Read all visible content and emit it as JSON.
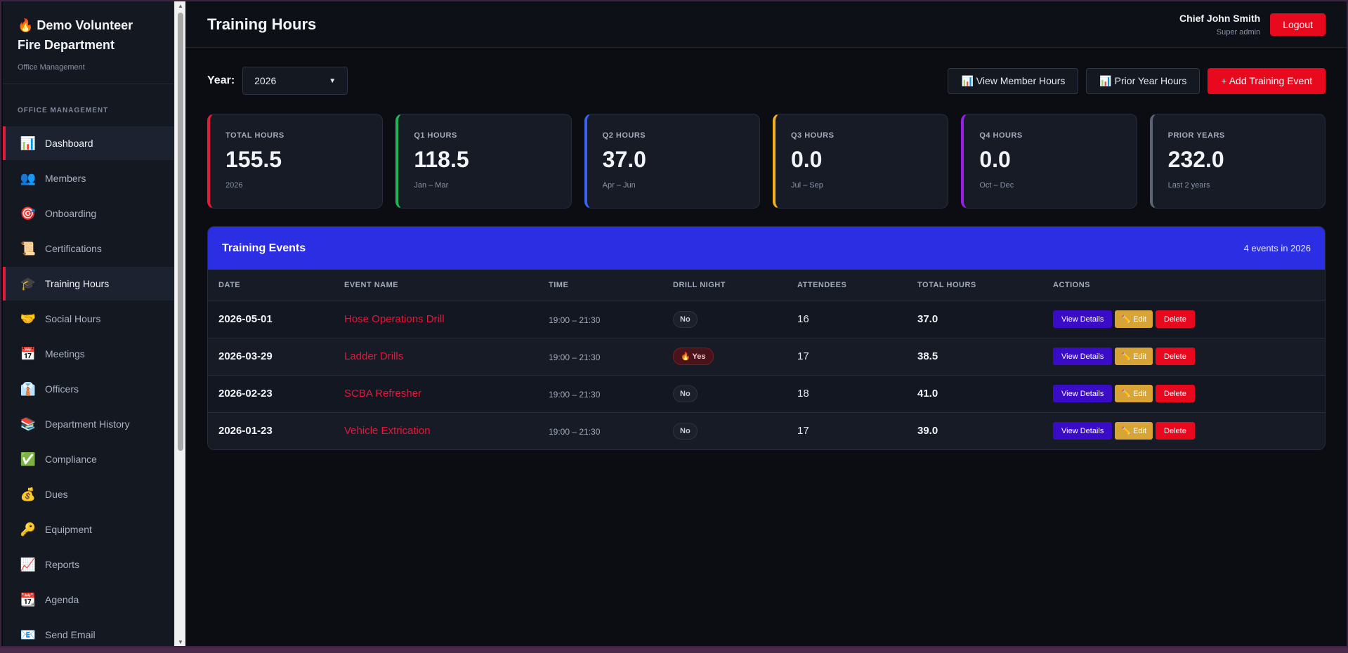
{
  "brand": {
    "title": "🔥 Demo Volunteer Fire Department",
    "subtitle": "Office Management"
  },
  "sidebar": {
    "heading": "OFFICE MANAGEMENT",
    "items": [
      {
        "label": "Dashboard",
        "icon": "📊",
        "icon_name": "bar-chart-icon",
        "active": true
      },
      {
        "label": "Members",
        "icon": "👥",
        "icon_name": "people-icon"
      },
      {
        "label": "Onboarding",
        "icon": "🎯",
        "icon_name": "target-icon"
      },
      {
        "label": "Certifications",
        "icon": "📜",
        "icon_name": "scroll-icon"
      },
      {
        "label": "Training Hours",
        "icon": "🎓",
        "icon_name": "graduation-cap-icon",
        "active": true
      },
      {
        "label": "Social Hours",
        "icon": "🤝",
        "icon_name": "handshake-icon"
      },
      {
        "label": "Meetings",
        "icon": "📅",
        "icon_name": "calendar-icon"
      },
      {
        "label": "Officers",
        "icon": "👔",
        "icon_name": "necktie-icon"
      },
      {
        "label": "Department History",
        "icon": "📚",
        "icon_name": "books-icon"
      },
      {
        "label": "Compliance",
        "icon": "✅",
        "icon_name": "check-mark-icon"
      },
      {
        "label": "Dues",
        "icon": "💰",
        "icon_name": "money-bag-icon"
      },
      {
        "label": "Equipment",
        "icon": "🔑",
        "icon_name": "key-icon"
      },
      {
        "label": "Reports",
        "icon": "📈",
        "icon_name": "trend-chart-icon"
      },
      {
        "label": "Agenda",
        "icon": "📆",
        "icon_name": "tear-off-calendar-icon"
      },
      {
        "label": "Send Email",
        "icon": "📧",
        "icon_name": "email-icon"
      }
    ]
  },
  "header": {
    "title": "Training Hours",
    "user_name": "Chief John Smith",
    "user_role": "Super admin",
    "logout_label": "Logout"
  },
  "toolbar": {
    "year_label": "Year:",
    "year_value": "2026",
    "view_member_hours_label": "📊 View Member Hours",
    "prior_year_hours_label": "📊 Prior Year Hours",
    "add_event_label": "+ Add Training Event"
  },
  "stats": [
    {
      "label": "TOTAL HOURS",
      "value": "155.5",
      "sub": "2026",
      "color": "#e21d3a"
    },
    {
      "label": "Q1 HOURS",
      "value": "118.5",
      "sub": "Jan – Mar",
      "color": "#1fb35a"
    },
    {
      "label": "Q2 HOURS",
      "value": "37.0",
      "sub": "Apr – Jun",
      "color": "#3b63f0"
    },
    {
      "label": "Q3 HOURS",
      "value": "0.0",
      "sub": "Jul – Sep",
      "color": "#f0b21f"
    },
    {
      "label": "Q4 HOURS",
      "value": "0.0",
      "sub": "Oct – Dec",
      "color": "#9b1ee6"
    },
    {
      "label": "PRIOR YEARS",
      "value": "232.0",
      "sub": "Last 2 years",
      "color": "#5c6474"
    }
  ],
  "events": {
    "title": "Training Events",
    "count": "4 events in 2026",
    "columns": [
      "DATE",
      "EVENT NAME",
      "TIME",
      "DRILL NIGHT",
      "ATTENDEES",
      "TOTAL HOURS",
      "ACTIONS"
    ],
    "rows": [
      {
        "date": "2026-05-01",
        "name": "Hose Operations Drill",
        "time": "19:00 – 21:30",
        "drill": "No",
        "drill_yes": false,
        "attendees": "16",
        "hours": "37.0"
      },
      {
        "date": "2026-03-29",
        "name": "Ladder Drills",
        "time": "19:00 – 21:30",
        "drill": "🔥 Yes",
        "drill_yes": true,
        "attendees": "17",
        "hours": "38.5"
      },
      {
        "date": "2026-02-23",
        "name": "SCBA Refresher",
        "time": "19:00 – 21:30",
        "drill": "No",
        "drill_yes": false,
        "attendees": "18",
        "hours": "41.0"
      },
      {
        "date": "2026-01-23",
        "name": "Vehicle Extrication",
        "time": "19:00 – 21:30",
        "drill": "No",
        "drill_yes": false,
        "attendees": "17",
        "hours": "39.0"
      }
    ],
    "actions": {
      "view": "View Details",
      "edit": "✏️ Edit",
      "delete": "Delete"
    }
  }
}
